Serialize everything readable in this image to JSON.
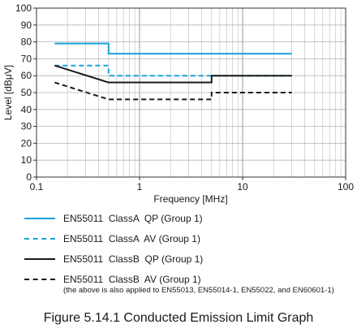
{
  "chart_data": {
    "type": "line",
    "xlabel": "Frequency [MHz]",
    "ylabel": "Level  [dBμV]",
    "xscale": "log",
    "xlim": [
      0.1,
      100
    ],
    "ylim": [
      0,
      100
    ],
    "x_tick_labels": [
      "0.1",
      "1",
      "10",
      "100"
    ],
    "x_tick_values": [
      0.1,
      1,
      10,
      100
    ],
    "y_tick_values": [
      0,
      10,
      20,
      30,
      40,
      50,
      60,
      70,
      80,
      90,
      100
    ],
    "grid": true,
    "series": [
      {
        "name": "EN55011  ClassA  QP (Group 1)",
        "color": "#1aa3dd",
        "dash": "solid",
        "points": [
          [
            0.15,
            79
          ],
          [
            0.5,
            79
          ],
          [
            0.5,
            73
          ],
          [
            30,
            73
          ]
        ]
      },
      {
        "name": "EN55011  ClassA  AV (Group 1)",
        "color": "#1aa3dd",
        "dash": "dashed",
        "points": [
          [
            0.15,
            66
          ],
          [
            0.5,
            66
          ],
          [
            0.5,
            60
          ],
          [
            30,
            60
          ]
        ]
      },
      {
        "name": "EN55011  ClassB  QP (Group 1)",
        "color": "#1a1a1a",
        "dash": "solid",
        "points": [
          [
            0.15,
            66
          ],
          [
            0.5,
            56
          ],
          [
            5,
            56
          ],
          [
            5,
            60
          ],
          [
            30,
            60
          ]
        ]
      },
      {
        "name": "EN55011  ClassB  AV (Group 1)",
        "color": "#1a1a1a",
        "dash": "dashed",
        "points": [
          [
            0.15,
            56
          ],
          [
            0.5,
            46
          ],
          [
            5,
            46
          ],
          [
            5,
            50
          ],
          [
            30,
            50
          ]
        ]
      }
    ],
    "note": "(the above is also applied to EN55013, EN55014-1, EN55022, and EN60601-1)"
  },
  "caption": "Figure 5.14.1 Conducted Emission Limit Graph"
}
